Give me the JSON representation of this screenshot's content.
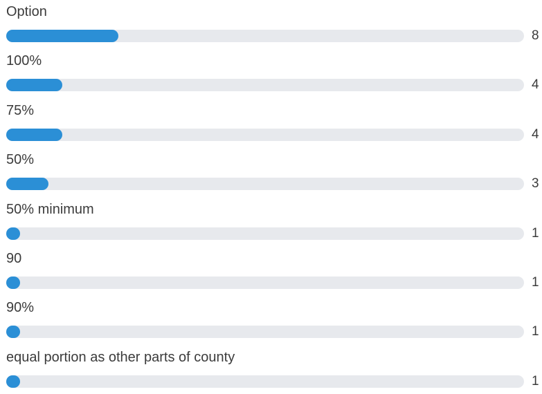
{
  "chart_data": {
    "type": "bar",
    "orientation": "horizontal",
    "categories": [
      "Option",
      "100%",
      "75%",
      "50%",
      "50% minimum",
      "90",
      "90%",
      "equal portion as other parts of county"
    ],
    "values": [
      8,
      4,
      4,
      3,
      1,
      1,
      1,
      1
    ],
    "xlim": [
      0,
      37
    ],
    "title": "",
    "xlabel": "",
    "ylabel": "",
    "grid": false,
    "colors": {
      "bar": "#2b8fd6",
      "track": "#e7e9ed"
    }
  }
}
